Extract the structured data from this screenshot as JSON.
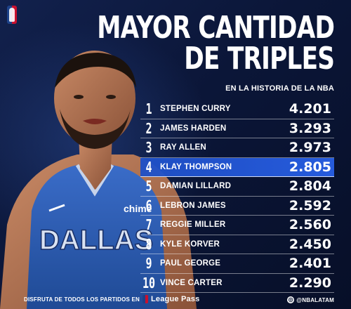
{
  "title": {
    "line1": "MAYOR CANTIDAD",
    "line2": "DE TRIPLES"
  },
  "subtitle": "EN LA HISTORIA DE LA NBA",
  "ranking": [
    {
      "rank": "1",
      "name": "STEPHEN CURRY",
      "value": "4.201"
    },
    {
      "rank": "2",
      "name": "JAMES HARDEN",
      "value": "3.293"
    },
    {
      "rank": "3",
      "name": "RAY ALLEN",
      "value": "2.973"
    },
    {
      "rank": "4",
      "name": "KLAY THOMPSON",
      "value": "2.805"
    },
    {
      "rank": "5",
      "name": "DAMIAN LILLARD",
      "value": "2.804"
    },
    {
      "rank": "6",
      "name": "LEBRON JAMES",
      "value": "2.592"
    },
    {
      "rank": "7",
      "name": "REGGIE MILLER",
      "value": "2.560"
    },
    {
      "rank": "8",
      "name": "KYLE KORVER",
      "value": "2.450"
    },
    {
      "rank": "9",
      "name": "PAUL GEORGE",
      "value": "2.401"
    },
    {
      "rank": "10",
      "name": "VINCE CARTER",
      "value": "2.290"
    }
  ],
  "highlight_index": 3,
  "jersey": {
    "team": "DALLAS",
    "brand": "chime"
  },
  "footer": {
    "promo": "DISFRUTA DE TODOS LOS PARTIDOS EN",
    "service": "League Pass",
    "handle": "@NBALATAM"
  },
  "colors": {
    "background": "#0a1533",
    "highlight": "#2a5ee0",
    "jersey": "#2b5cb0",
    "nba_blue": "#1d428a",
    "nba_red": "#c8102e"
  },
  "icons": [
    "nba-logo-icon",
    "league-pass-icon",
    "instagram-icon"
  ]
}
